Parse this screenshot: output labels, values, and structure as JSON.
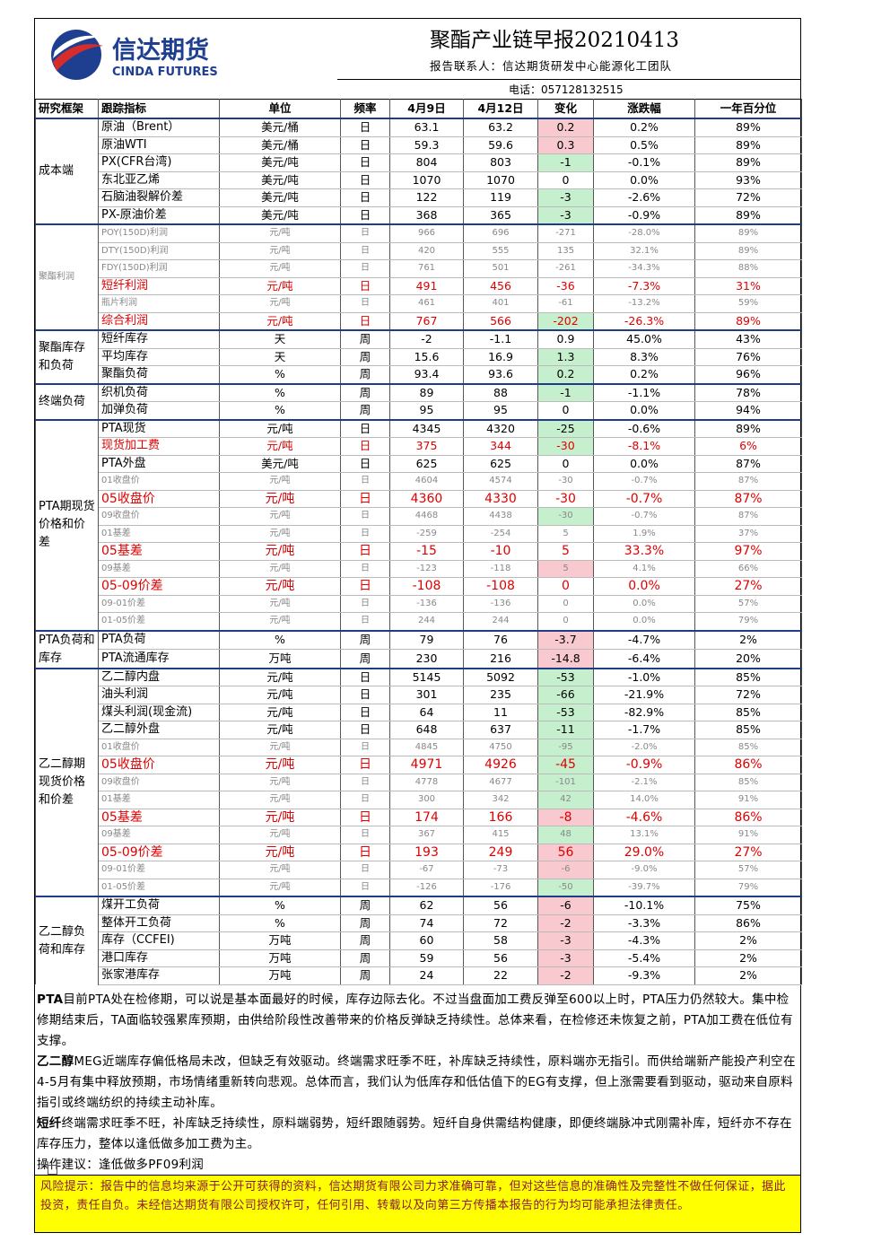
{
  "header": {
    "logo_cn": "信达期货",
    "logo_en": "CINDA FUTURES",
    "title": "聚酯产业链早报20210413",
    "contact": "报告联系人：信达期货研发中心能源化工团队",
    "phone": "电话：057128132515"
  },
  "table": {
    "header": [
      "研究框架",
      "跟踪指标",
      "单位",
      "频率",
      "4月9日",
      "4月12日",
      "变化",
      "涨跌幅",
      "一年百分位"
    ],
    "groups": [
      {
        "label": "成本端",
        "rows": [
          [
            "原油（Brent）",
            "美元/桶",
            "日",
            "63.1",
            "63.2",
            "0.2",
            "0.2%",
            "89%"
          ],
          [
            "原油WTI",
            "美元/桶",
            "日",
            "59.3",
            "59.6",
            "0.3",
            "0.5%",
            "89%"
          ],
          [
            "PX(CFR台湾)",
            "美元/吨",
            "日",
            "804",
            "803",
            "-1",
            "-0.1%",
            "89%"
          ],
          [
            "东北亚乙烯",
            "美元/吨",
            "日",
            "1070",
            "1070",
            "0",
            "0.0%",
            "93%"
          ],
          [
            "石脑油裂解价差",
            "美元/吨",
            "日",
            "122",
            "119",
            "-3",
            "-2.6%",
            "72%"
          ],
          [
            "PX-原油价差",
            "美元/吨",
            "日",
            "368",
            "365",
            "-3",
            "-0.9%",
            "89%"
          ]
        ]
      },
      {
        "label": "聚酯利润",
        "rows": [
          [
            "POY(150D)利润",
            "元/吨",
            "日",
            "966",
            "696",
            "-271",
            "-28.0%",
            "89%"
          ],
          [
            "DTY(150D)利润",
            "元/吨",
            "日",
            "420",
            "555",
            "135",
            "32.1%",
            "89%"
          ],
          [
            "FDY(150D)利润",
            "元/吨",
            "日",
            "761",
            "501",
            "-261",
            "-34.3%",
            "88%"
          ],
          [
            "短纤利润",
            "元/吨",
            "日",
            "491",
            "456",
            "-36",
            "-7.3%",
            "31%"
          ],
          [
            "瓶片利润",
            "元/吨",
            "日",
            "461",
            "401",
            "-61",
            "-13.2%",
            "59%"
          ],
          [
            "综合利润",
            "元/吨",
            "日",
            "767",
            "566",
            "-202",
            "-26.3%",
            "89%"
          ]
        ]
      },
      {
        "label": "聚酯库存和负荷",
        "rows": [
          [
            "短纤库存",
            "天",
            "周",
            "-2",
            "-1.1",
            "0.9",
            "45.0%",
            "43%"
          ],
          [
            "平均库存",
            "天",
            "周",
            "15.6",
            "16.9",
            "1.3",
            "8.3%",
            "76%"
          ],
          [
            "聚酯负荷",
            "%",
            "周",
            "93.4",
            "93.6",
            "0.2",
            "0.2%",
            "96%"
          ]
        ]
      },
      {
        "label": "终端负荷",
        "rows": [
          [
            "织机负荷",
            "%",
            "周",
            "89",
            "88",
            "-1",
            "-1.1%",
            "78%"
          ],
          [
            "加弹负荷",
            "%",
            "周",
            "95",
            "95",
            "0",
            "0.0%",
            "94%"
          ]
        ]
      },
      {
        "label": "PTA期现货价格和价差",
        "rows": [
          [
            "PTA现货",
            "元/吨",
            "日",
            "4345",
            "4320",
            "-25",
            "-0.6%",
            "89%"
          ],
          [
            "现货加工费",
            "元/吨",
            "日",
            "375",
            "344",
            "-30",
            "-8.1%",
            "6%"
          ],
          [
            "PTA外盘",
            "美元/吨",
            "日",
            "625",
            "625",
            "0",
            "0.0%",
            "87%"
          ],
          [
            "01收盘价",
            "元/吨",
            "日",
            "4604",
            "4574",
            "-30",
            "-0.7%",
            "87%"
          ],
          [
            "05收盘价",
            "元/吨",
            "日",
            "4360",
            "4330",
            "-30",
            "-0.7%",
            "87%"
          ],
          [
            "09收盘价",
            "元/吨",
            "日",
            "4468",
            "4438",
            "-30",
            "-0.7%",
            "87%"
          ],
          [
            "01基差",
            "元/吨",
            "日",
            "-259",
            "-254",
            "5",
            "1.9%",
            "37%"
          ],
          [
            "05基差",
            "元/吨",
            "日",
            "-15",
            "-10",
            "5",
            "33.3%",
            "97%"
          ],
          [
            "09基差",
            "元/吨",
            "日",
            "-123",
            "-118",
            "5",
            "4.1%",
            "66%"
          ],
          [
            "05-09价差",
            "元/吨",
            "日",
            "-108",
            "-108",
            "0",
            "0.0%",
            "27%"
          ],
          [
            "09-01价差",
            "元/吨",
            "日",
            "-136",
            "-136",
            "0",
            "0.0%",
            "57%"
          ],
          [
            "01-05价差",
            "元/吨",
            "日",
            "244",
            "244",
            "0",
            "0.0%",
            "79%"
          ]
        ]
      },
      {
        "label": "PTA负荷和库存",
        "rows": [
          [
            "PTA负荷",
            "%",
            "周",
            "79",
            "76",
            "-3.7",
            "-4.7%",
            "2%"
          ],
          [
            "PTA流通库存",
            "万吨",
            "周",
            "230",
            "216",
            "-14.8",
            "-6.4%",
            "20%"
          ]
        ]
      },
      {
        "label": "乙二醇期现货价格和价差",
        "rows": [
          [
            "乙二醇内盘",
            "元/吨",
            "日",
            "5145",
            "5092",
            "-53",
            "-1.0%",
            "85%"
          ],
          [
            "油头利润",
            "元/吨",
            "日",
            "301",
            "235",
            "-66",
            "-21.9%",
            "72%"
          ],
          [
            "煤头利润(现金流)",
            "元/吨",
            "日",
            "64",
            "11",
            "-53",
            "-82.9%",
            "85%"
          ],
          [
            "乙二醇外盘",
            "元/吨",
            "日",
            "648",
            "637",
            "-11",
            "-1.7%",
            "85%"
          ],
          [
            "01收盘价",
            "元/吨",
            "日",
            "4845",
            "4750",
            "-95",
            "-2.0%",
            "85%"
          ],
          [
            "05收盘价",
            "元/吨",
            "日",
            "4971",
            "4926",
            "-45",
            "-0.9%",
            "86%"
          ],
          [
            "09收盘价",
            "元/吨",
            "日",
            "4778",
            "4677",
            "-101",
            "-2.1%",
            "85%"
          ],
          [
            "01基差",
            "元/吨",
            "日",
            "300",
            "342",
            "42",
            "14.0%",
            "91%"
          ],
          [
            "05基差",
            "元/吨",
            "日",
            "174",
            "166",
            "-8",
            "-4.6%",
            "86%"
          ],
          [
            "09基差",
            "元/吨",
            "日",
            "367",
            "415",
            "48",
            "13.1%",
            "91%"
          ],
          [
            "05-09价差",
            "元/吨",
            "日",
            "193",
            "249",
            "56",
            "29.0%",
            "27%"
          ],
          [
            "09-01价差",
            "元/吨",
            "日",
            "-67",
            "-73",
            "-6",
            "-9.0%",
            "57%"
          ],
          [
            "01-05价差",
            "元/吨",
            "日",
            "-126",
            "-176",
            "-50",
            "-39.7%",
            "79%"
          ]
        ]
      },
      {
        "label": "乙二醇负荷和库存",
        "rows": [
          [
            "煤开工负荷",
            "%",
            "周",
            "62",
            "56",
            "-6",
            "-10.1%",
            "75%"
          ],
          [
            "整体开工负荷",
            "%",
            "周",
            "74",
            "72",
            "-2",
            "-3.3%",
            "86%"
          ],
          [
            "库存（CCFEI)",
            "万吨",
            "周",
            "60",
            "58",
            "-3",
            "-4.3%",
            "2%"
          ],
          [
            "港口库存",
            "万吨",
            "周",
            "59",
            "56",
            "-3",
            "-5.4%",
            "2%"
          ],
          [
            "张家港库存",
            "万吨",
            "周",
            "24",
            "22",
            "-2",
            "-9.3%",
            "2%"
          ]
        ]
      }
    ]
  },
  "commentary": [
    {
      "lead": "PTA",
      "text": "目前PTA处在检修期，可以说是基本面最好的时候，库存边际去化。不过当盘面加工费反弹至600以上时，PTA压力仍然较大。集中检修期结束后，TA面临较强累库预期，由供给阶段性改善带来的价格反弹缺乏持续性。总体来看，在检修还未恢复之前，PTA加工费在低位有支撑。"
    },
    {
      "lead": "乙二醇",
      "text": "MEG近端库存偏低格局未改，但缺乏有效驱动。终端需求旺季不旺，补库缺乏持续性，原料端亦无指引。而供给端新产能投产利空在4-5月有集中释放预期，市场情绪重新转向悲观。总体而言，我们认为低库存和低估值下的EG有支撑，但上涨需要看到驱动，驱动来自原料指引或终端纺织的持续主动补库。"
    },
    {
      "lead": "短纤",
      "text": "终端需求旺季不旺，补库缺乏持续性，原料端弱势，短纤跟随弱势。短纤自身供需结构健康，即便终端脉冲式刚需补库，短纤亦不存在库存压力，整体以逢低做多加工费为主。"
    }
  ],
  "advice": "操作建议：逢低做多PF09利润",
  "disclaimer": "风险提示：报告中的信息均来源于公开可获得的资料，信达期货有限公司力求准确可靠，但对这些信息的准确性及完整性不做任何保证，据此投资，责任自负。未经信达期货有限公司授权许可，任何引用、转载以及向第三方传播本报告的行为均可能承担法律责任。"
}
